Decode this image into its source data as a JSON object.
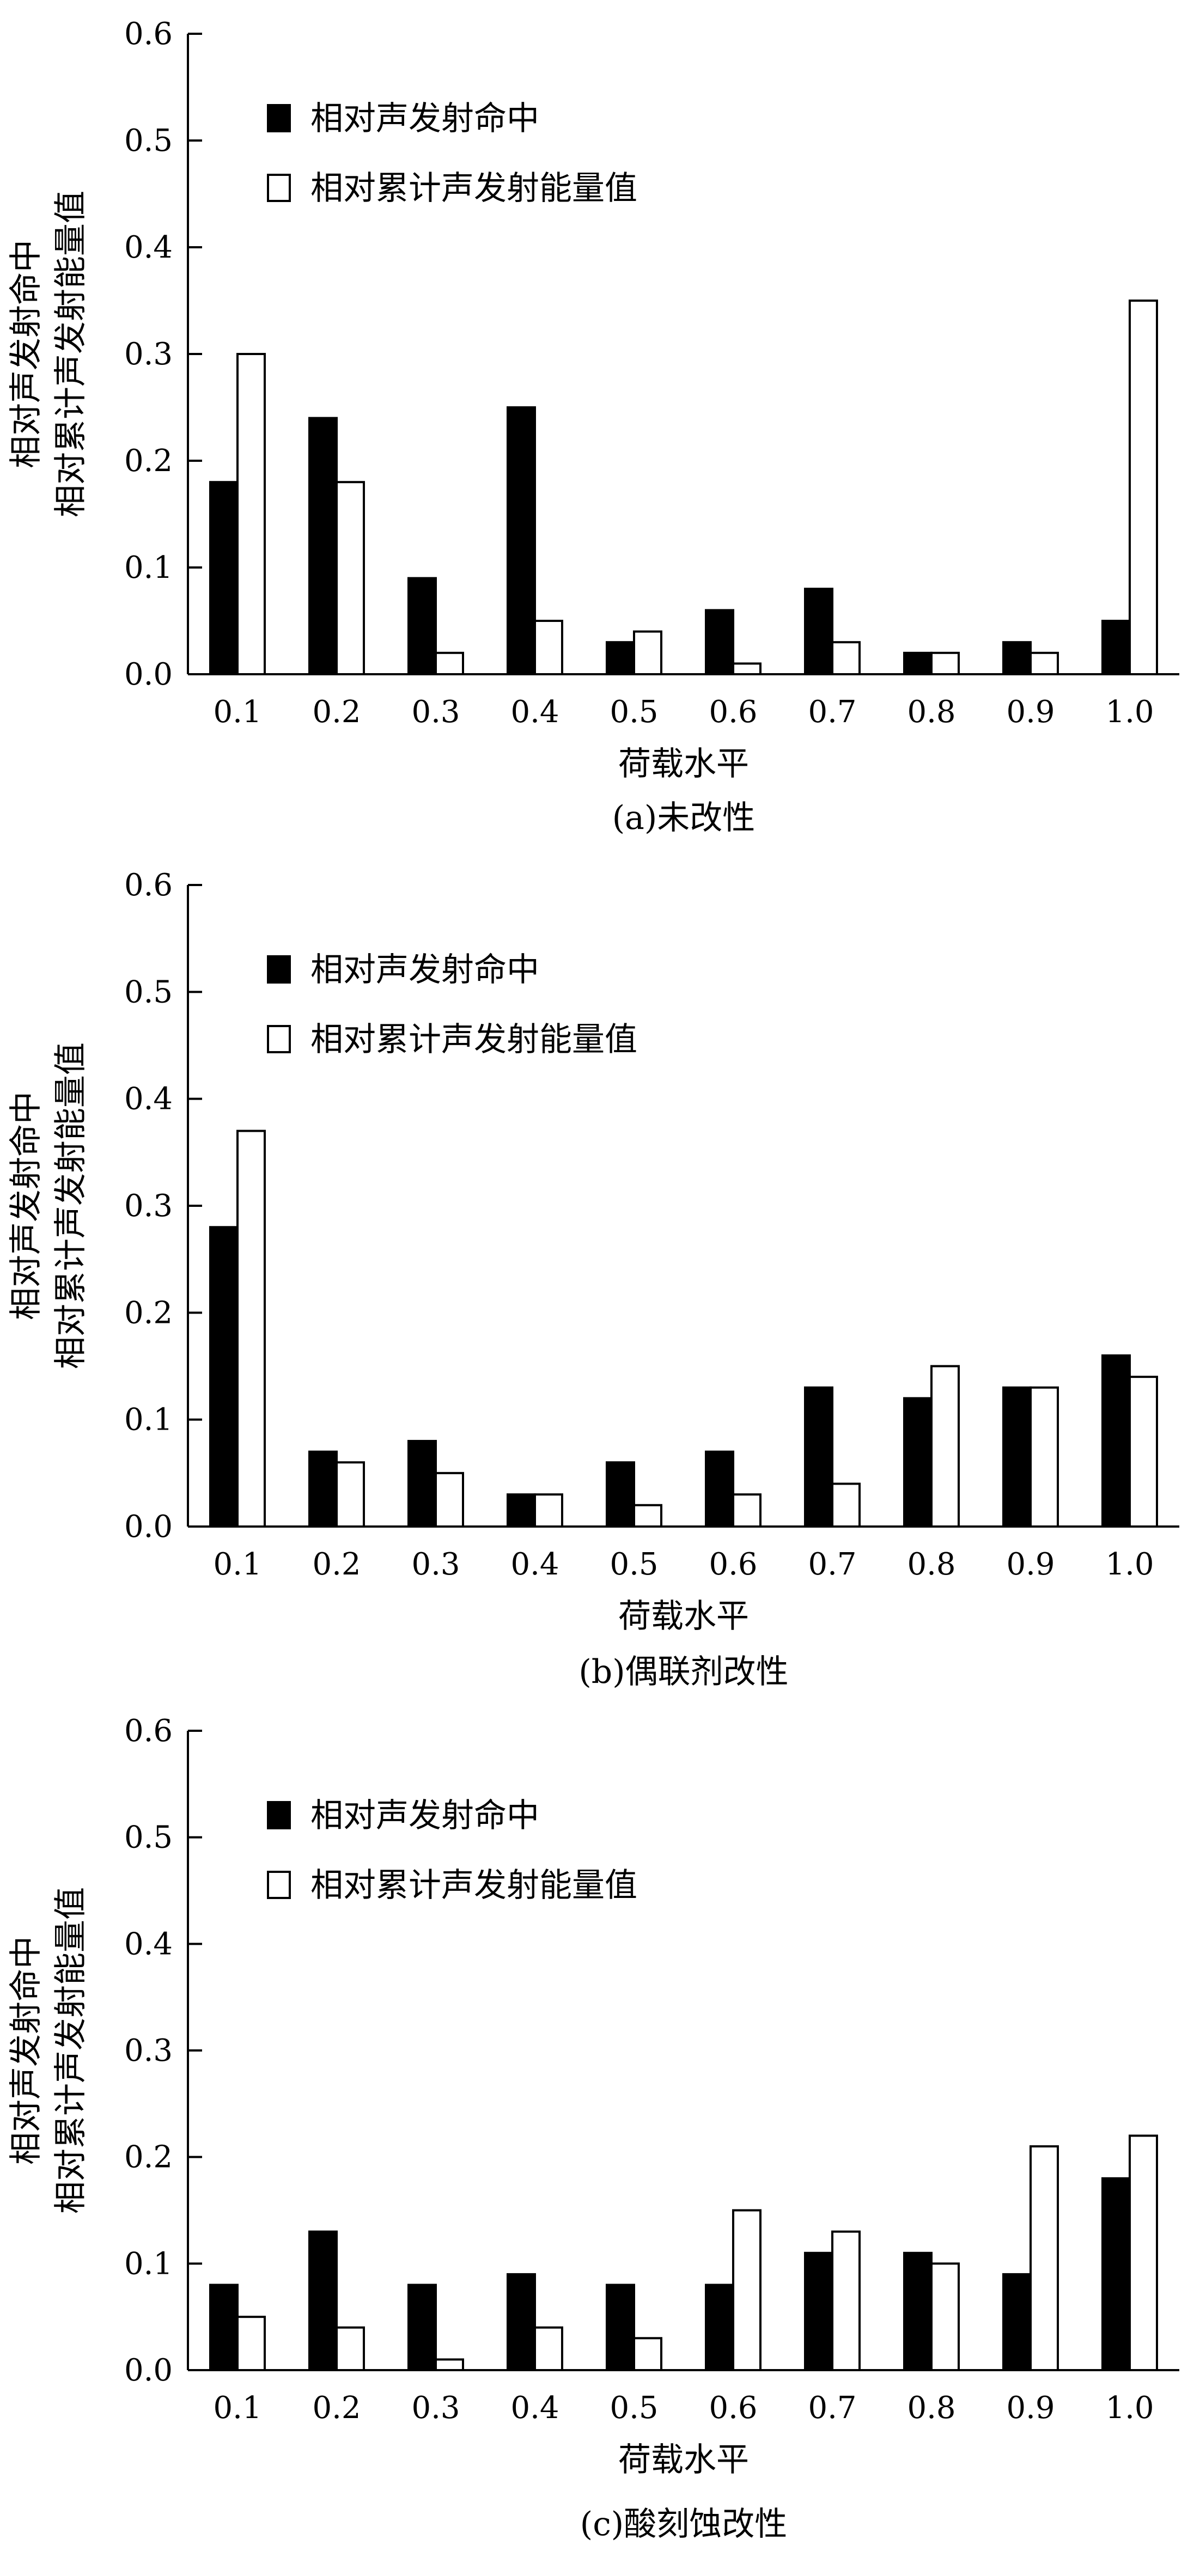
{
  "chart_data": [
    {
      "type": "bar",
      "caption": "(a)未改性",
      "xlabel": "荷载水平",
      "ylabel_lines": [
        "相对声发射命中",
        "相对累计声发射能量值"
      ],
      "categories": [
        "0.1",
        "0.2",
        "0.3",
        "0.4",
        "0.5",
        "0.6",
        "0.7",
        "0.8",
        "0.9",
        "1.0"
      ],
      "ylim": [
        0,
        0.6
      ],
      "yticks": [
        "0.0",
        "0.1",
        "0.2",
        "0.3",
        "0.4",
        "0.5",
        "0.6"
      ],
      "legend_position": "top-left",
      "series": [
        {
          "name": "相对声发射命中",
          "color": "#000000",
          "values": [
            0.18,
            0.24,
            0.09,
            0.25,
            0.03,
            0.06,
            0.08,
            0.02,
            0.03,
            0.05
          ]
        },
        {
          "name": "相对累计声发射能量值",
          "color": "#ffffff",
          "values": [
            0.3,
            0.18,
            0.02,
            0.05,
            0.04,
            0.01,
            0.03,
            0.02,
            0.02,
            0.35
          ]
        }
      ]
    },
    {
      "type": "bar",
      "caption": "(b)偶联剂改性",
      "xlabel": "荷载水平",
      "ylabel_lines": [
        "相对声发射命中",
        "相对累计声发射能量值"
      ],
      "categories": [
        "0.1",
        "0.2",
        "0.3",
        "0.4",
        "0.5",
        "0.6",
        "0.7",
        "0.8",
        "0.9",
        "1.0"
      ],
      "ylim": [
        0,
        0.6
      ],
      "yticks": [
        "0.0",
        "0.1",
        "0.2",
        "0.3",
        "0.4",
        "0.5",
        "0.6"
      ],
      "legend_position": "top-left",
      "series": [
        {
          "name": "相对声发射命中",
          "color": "#000000",
          "values": [
            0.28,
            0.07,
            0.08,
            0.03,
            0.06,
            0.07,
            0.13,
            0.12,
            0.13,
            0.16
          ]
        },
        {
          "name": "相对累计声发射能量值",
          "color": "#ffffff",
          "values": [
            0.37,
            0.06,
            0.05,
            0.03,
            0.02,
            0.03,
            0.04,
            0.15,
            0.13,
            0.14
          ]
        }
      ]
    },
    {
      "type": "bar",
      "caption": "(c)酸刻蚀改性",
      "xlabel": "荷载水平",
      "ylabel_lines": [
        "相对声发射命中",
        "相对累计声发射能量值"
      ],
      "categories": [
        "0.1",
        "0.2",
        "0.3",
        "0.4",
        "0.5",
        "0.6",
        "0.7",
        "0.8",
        "0.9",
        "1.0"
      ],
      "ylim": [
        0,
        0.6
      ],
      "yticks": [
        "0.0",
        "0.1",
        "0.2",
        "0.3",
        "0.4",
        "0.5",
        "0.6"
      ],
      "legend_position": "top-left",
      "series": [
        {
          "name": "相对声发射命中",
          "color": "#000000",
          "values": [
            0.08,
            0.13,
            0.08,
            0.09,
            0.08,
            0.08,
            0.11,
            0.11,
            0.09,
            0.18
          ]
        },
        {
          "name": "相对累计声发射能量值",
          "color": "#ffffff",
          "values": [
            0.05,
            0.04,
            0.01,
            0.04,
            0.03,
            0.15,
            0.13,
            0.1,
            0.21,
            0.22
          ]
        }
      ]
    }
  ]
}
